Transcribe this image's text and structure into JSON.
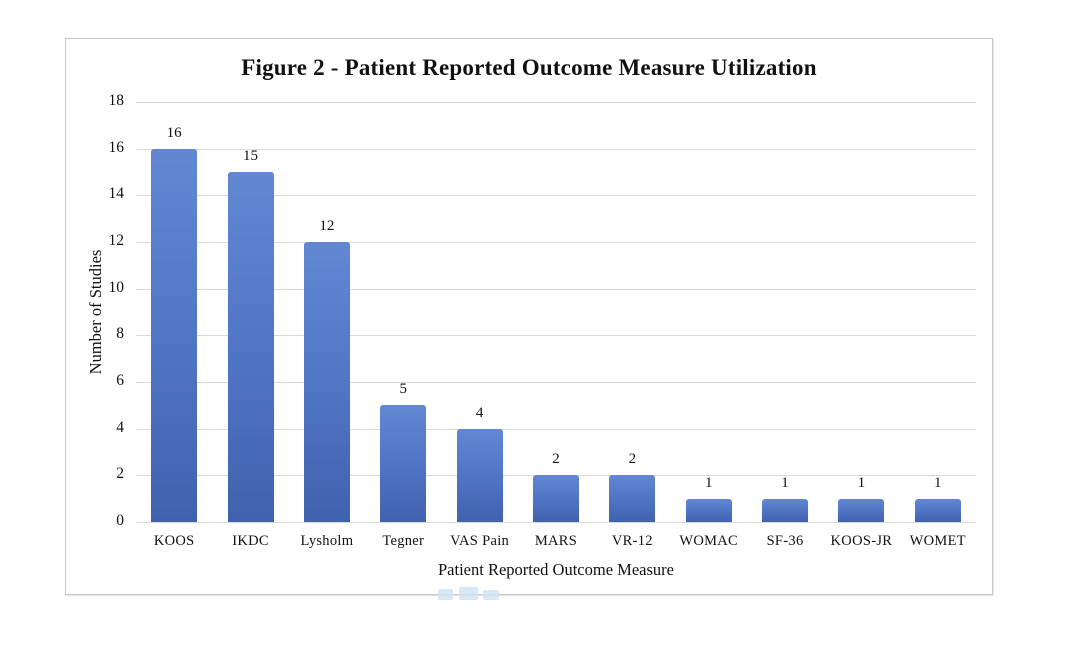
{
  "figure": {
    "title": "Figure 2 - Patient Reported Outcome Measure Utilization"
  },
  "chart_data": {
    "type": "bar",
    "title": "Figure 2 - Patient Reported Outcome Measure Utilization",
    "categories": [
      "KOOS",
      "IKDC",
      "Lysholm",
      "Tegner",
      "VAS Pain",
      "MARS",
      "VR-12",
      "WOMAC",
      "SF-36",
      "KOOS-JR",
      "WOMET"
    ],
    "values": [
      16,
      15,
      12,
      5,
      4,
      2,
      2,
      1,
      1,
      1,
      1
    ],
    "xlabel": "Patient Reported Outcome Measure",
    "ylabel": "Number of Studies",
    "ylim": [
      0,
      18
    ],
    "yticks": [
      0,
      2,
      4,
      6,
      8,
      10,
      12,
      14,
      16,
      18
    ],
    "grid": true,
    "legend": "none",
    "data_labels": true,
    "bar_gradient_top": "#6287d3",
    "bar_gradient_mid": "#4f74c3",
    "bar_gradient_bottom": "#4061ae",
    "gridline_color": "#d9d9d9",
    "watermark_color": "#cfe3f5"
  }
}
